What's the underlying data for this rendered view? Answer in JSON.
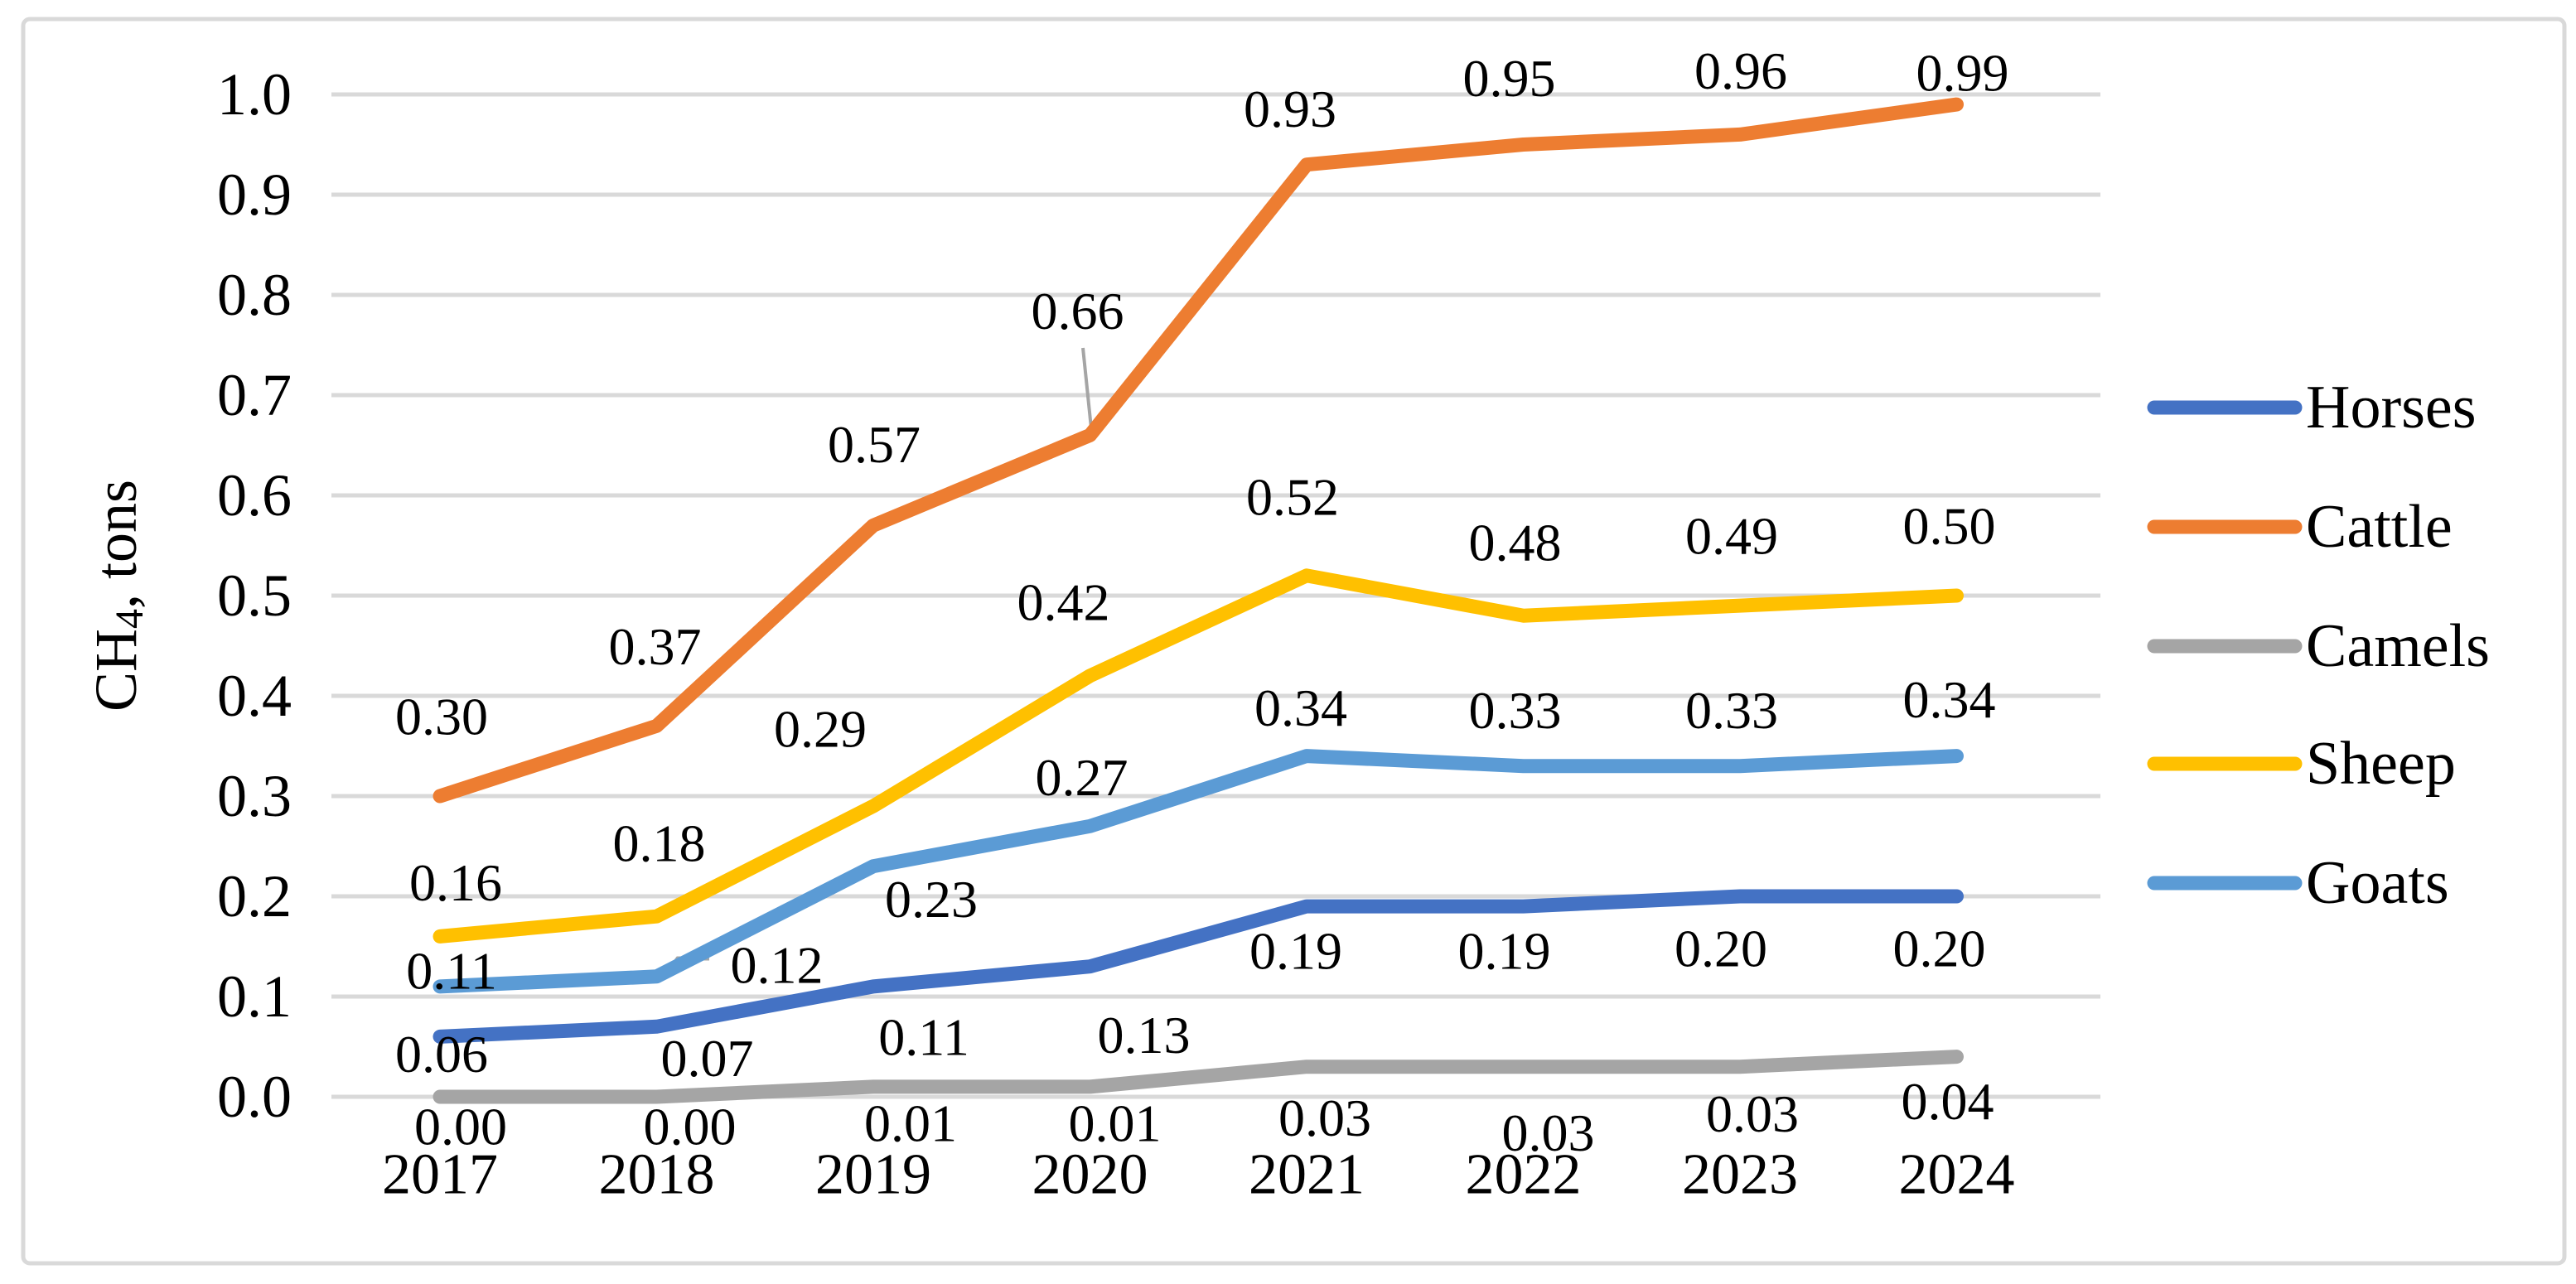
{
  "figure": {
    "background_color": "#FFFFFF",
    "border_color": "#D9D9D9"
  },
  "chart_data": {
    "type": "line",
    "title": "",
    "xlabel": "",
    "ylabel": "CH4, tons",
    "ylabel_parts": {
      "base": "CH",
      "subscript": "4",
      "rest": ", tons"
    },
    "categories": [
      "2017",
      "2018",
      "2019",
      "2020",
      "2021",
      "2022",
      "2023",
      "2024"
    ],
    "series": [
      {
        "name": "Horses",
        "color": "#4472C4",
        "values": [
          0.06,
          0.07,
          0.11,
          0.13,
          0.19,
          0.19,
          0.2,
          0.2
        ],
        "labels": [
          "0.06",
          "0.07",
          "0.11",
          "0.13",
          "0.19",
          "0.19",
          "0.20",
          "0.20"
        ],
        "label_side": "below"
      },
      {
        "name": "Cattle",
        "color": "#ED7D31",
        "values": [
          0.3,
          0.37,
          0.57,
          0.66,
          0.93,
          0.95,
          0.96,
          0.99
        ],
        "labels": [
          "0.30",
          "0.37",
          "0.57",
          "0.66",
          "0.93",
          "0.95",
          "0.96",
          "0.99"
        ],
        "label_side": "above"
      },
      {
        "name": "Camels",
        "color": "#A5A5A5",
        "values": [
          0.0,
          0.0,
          0.01,
          0.01,
          0.03,
          0.03,
          0.03,
          0.04
        ],
        "labels": [
          "0.00",
          "0.00",
          "0.01",
          "0.01",
          "0.03",
          "0.03",
          "0.03",
          "0.04"
        ],
        "label_side": "below"
      },
      {
        "name": "Sheep",
        "color": "#FFC000",
        "values": [
          0.16,
          0.18,
          0.29,
          0.42,
          0.52,
          0.48,
          0.49,
          0.5
        ],
        "labels": [
          "0.16",
          "0.18",
          "0.29",
          "0.42",
          "0.52",
          "0.48",
          "0.49",
          "0.50"
        ],
        "label_side": "above"
      },
      {
        "name": "Goats",
        "color": "#5B9BD5",
        "values": [
          0.11,
          0.12,
          0.23,
          0.27,
          0.34,
          0.33,
          0.33,
          0.34
        ],
        "labels": [
          "0.11",
          "0.12",
          "0.23",
          "0.27",
          "0.34",
          "0.33",
          "0.33",
          "0.34"
        ],
        "label_side": "above"
      }
    ],
    "ylim": [
      0.0,
      1.0
    ],
    "ytick_labels": [
      "0.0",
      "0.1",
      "0.2",
      "0.3",
      "0.4",
      "0.5",
      "0.6",
      "0.7",
      "0.8",
      "0.9",
      "1.0"
    ],
    "grid": "horizontal",
    "gridline_color": "#D9D9D9",
    "data_label_decimals": 2,
    "leader_line_color": "#A5A5A5",
    "legend": {
      "position": "right",
      "entries": [
        "Horses",
        "Cattle",
        "Camels",
        "Sheep",
        "Goats"
      ]
    }
  }
}
